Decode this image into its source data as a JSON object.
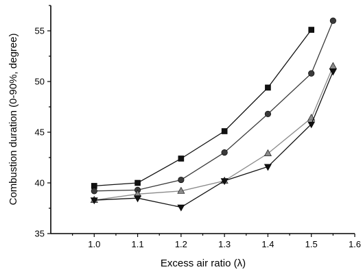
{
  "chart_data": {
    "type": "line",
    "xlabel": "Excess air ratio (λ)",
    "ylabel": "Combustion duration (0-90%, degree)",
    "xlim": [
      0.9,
      1.6
    ],
    "ylim": [
      35,
      57.5
    ],
    "xticks": [
      "1.0",
      "1.1",
      "1.2",
      "1.3",
      "1.4",
      "1.5",
      "1.6"
    ],
    "xtick_values": [
      1.0,
      1.1,
      1.2,
      1.3,
      1.4,
      1.5,
      1.6
    ],
    "yticks": [
      "35",
      "40",
      "45",
      "50",
      "55"
    ],
    "ytick_values": [
      35,
      40,
      45,
      50,
      55
    ],
    "grid": false,
    "series": [
      {
        "marker": "square",
        "color": "#111111",
        "x": [
          1.0,
          1.1,
          1.2,
          1.3,
          1.4,
          1.5
        ],
        "y": [
          39.7,
          40.0,
          42.4,
          45.1,
          49.4,
          55.1
        ]
      },
      {
        "marker": "circle",
        "color": "#3a3a3a",
        "x": [
          1.0,
          1.1,
          1.2,
          1.3,
          1.4,
          1.5,
          1.55
        ],
        "y": [
          39.2,
          39.3,
          40.3,
          43.0,
          46.8,
          50.8,
          56.0
        ]
      },
      {
        "marker": "triangle-up",
        "color": "#8a8a8a",
        "x": [
          1.0,
          1.1,
          1.2,
          1.3,
          1.4,
          1.5,
          1.55
        ],
        "y": [
          38.3,
          38.9,
          39.2,
          40.2,
          42.9,
          46.4,
          51.5
        ]
      },
      {
        "marker": "triangle-down",
        "color": "#111111",
        "x": [
          1.0,
          1.1,
          1.2,
          1.3,
          1.4,
          1.5,
          1.55
        ],
        "y": [
          38.3,
          38.5,
          37.6,
          40.2,
          41.6,
          45.8,
          51.0
        ]
      }
    ]
  }
}
